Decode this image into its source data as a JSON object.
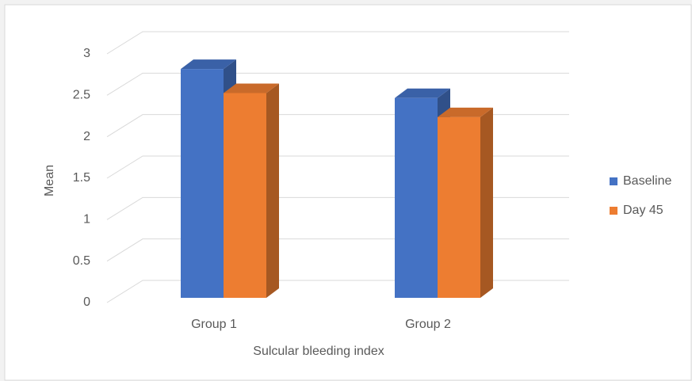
{
  "chart_data": {
    "type": "bar3d",
    "x_label": "Sulcular bleeding index",
    "y_label": "Mean",
    "categories": [
      "Group 1",
      "Group 2"
    ],
    "series": [
      {
        "name": "Baseline",
        "color": "#4472c4",
        "values": [
          2.76,
          2.41
        ]
      },
      {
        "name": "Day 45",
        "color": "#ed7d31",
        "values": [
          2.47,
          2.18
        ]
      }
    ],
    "ylim": [
      0,
      3
    ],
    "yticks": [
      0,
      0.5,
      1,
      1.5,
      2,
      2.5,
      3
    ],
    "grid": true,
    "legend": "right"
  }
}
